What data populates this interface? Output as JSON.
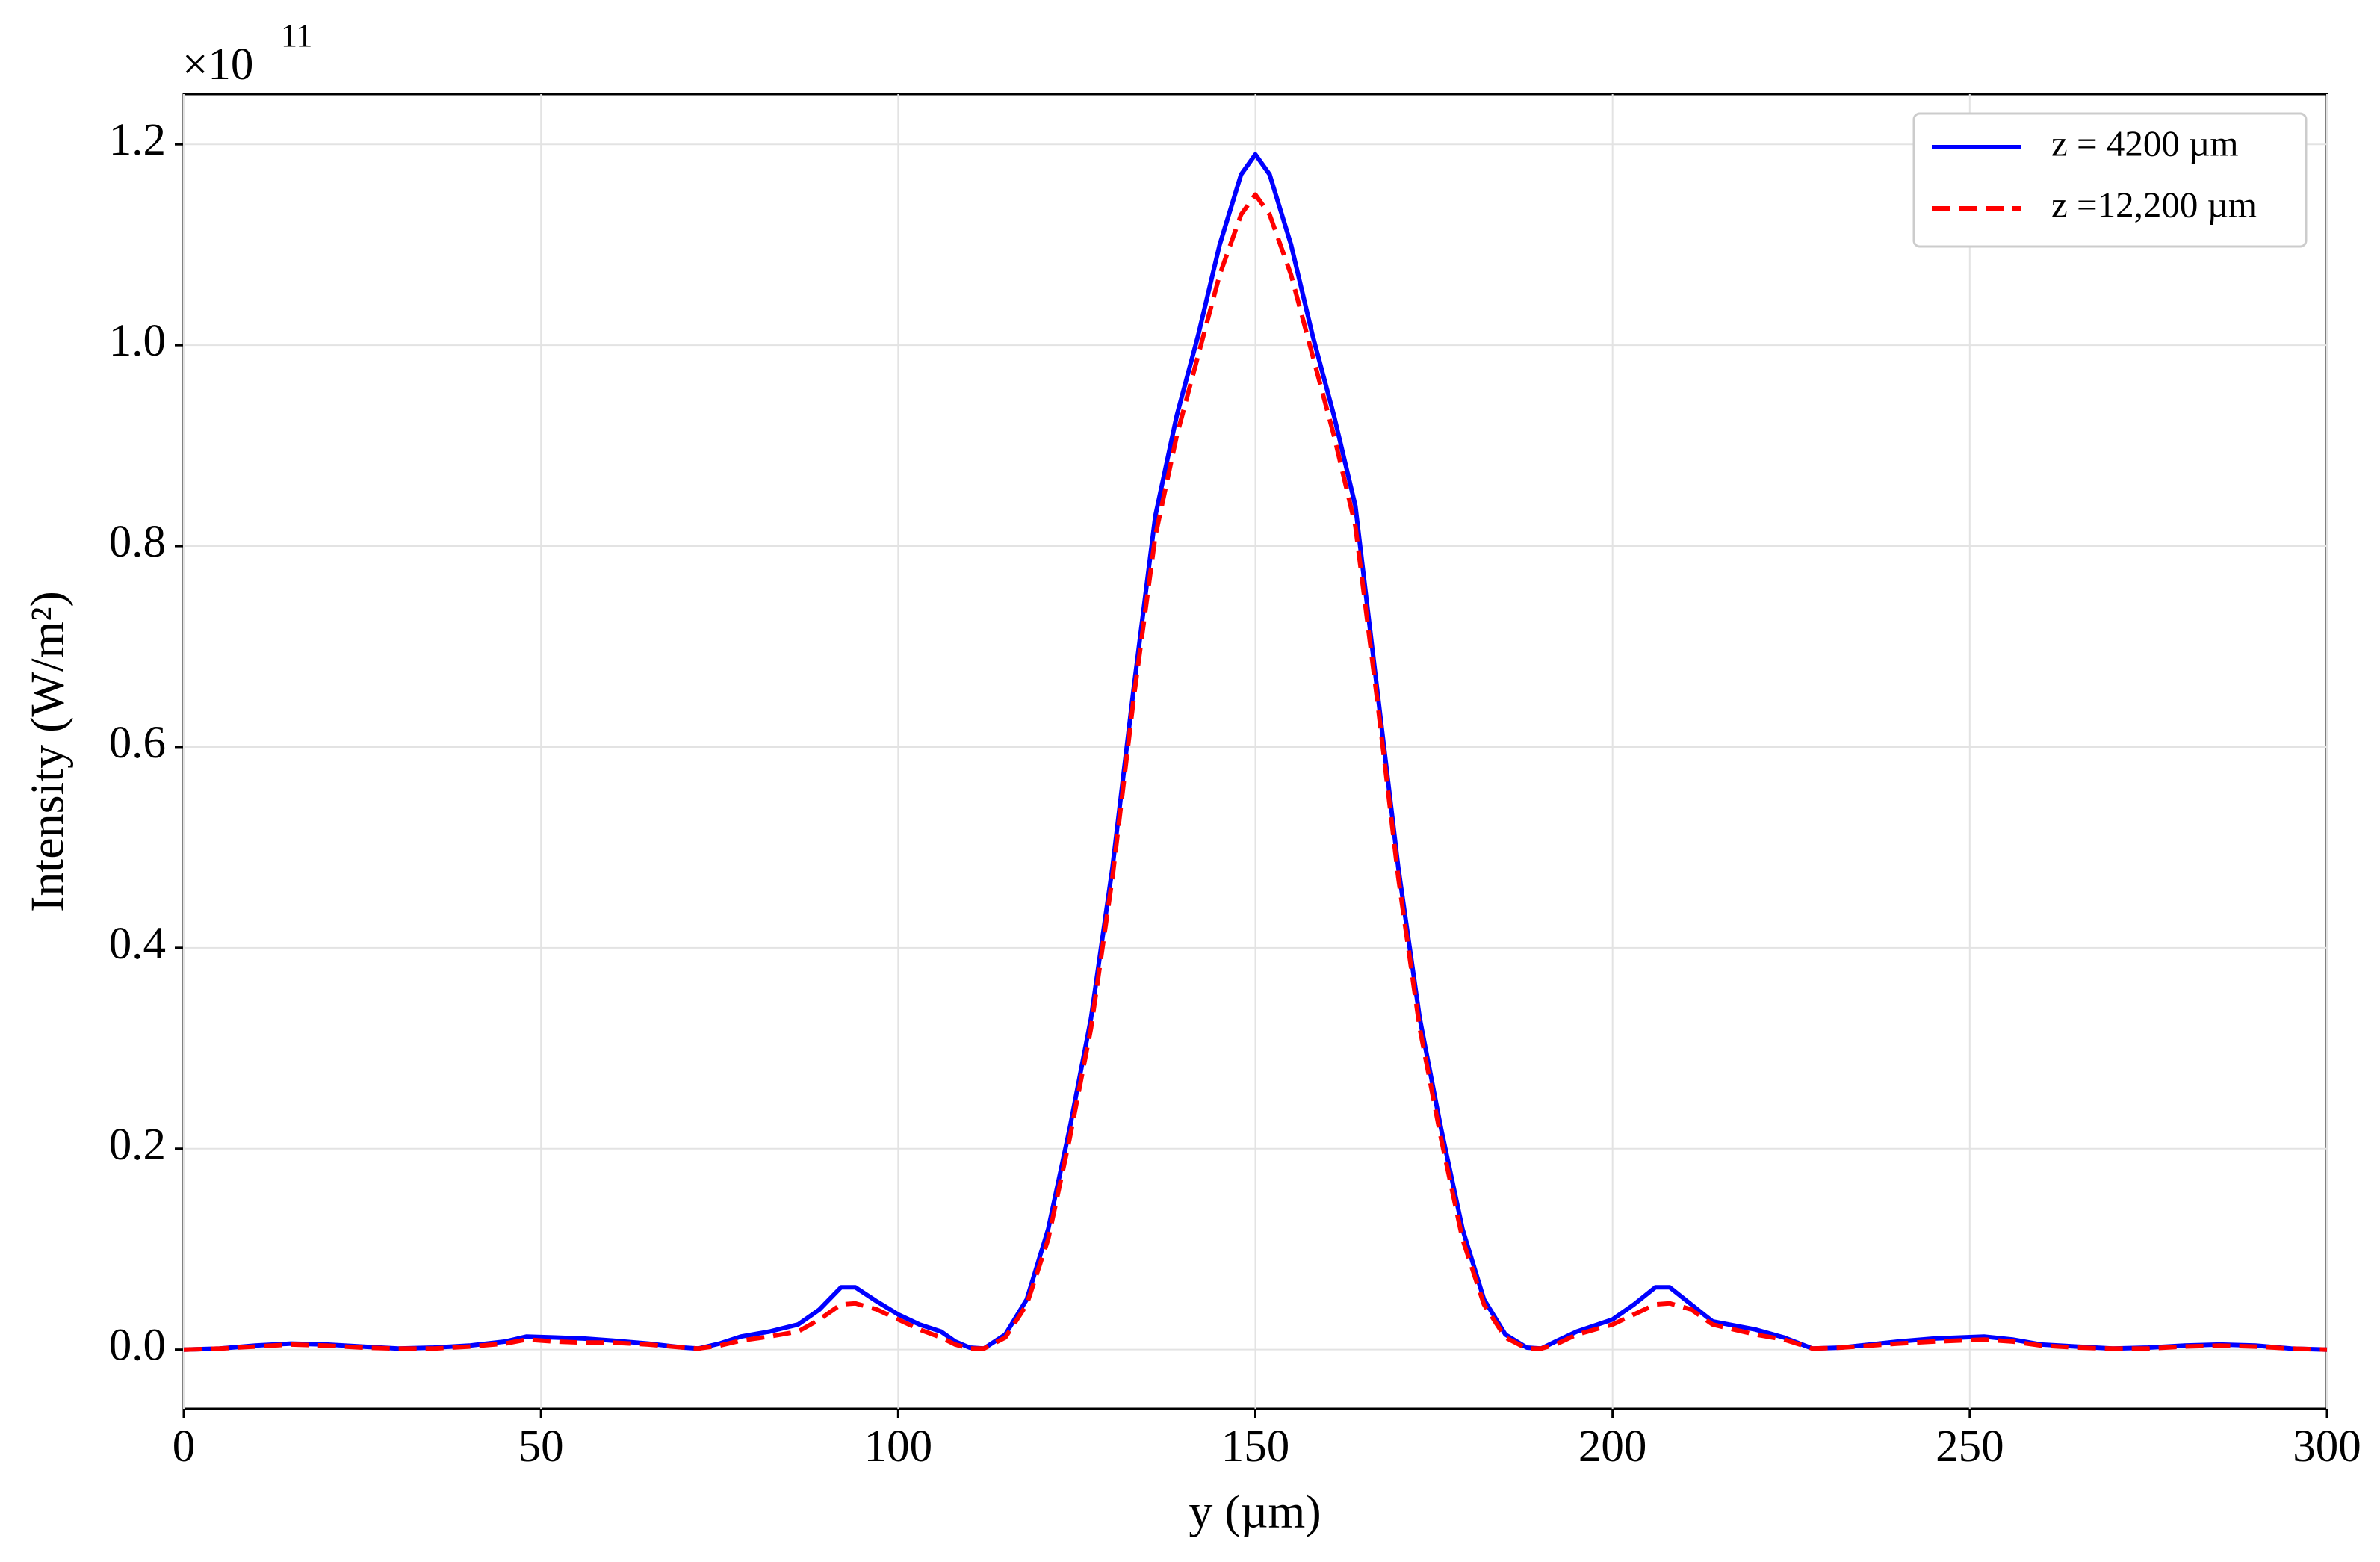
{
  "chart_data": {
    "type": "line",
    "y_multiplier": {
      "base": "×10",
      "exponent": "11"
    },
    "xlabel": "y (µm)",
    "ylabel": "Intensity (W/m²)",
    "x": [
      0,
      5,
      10,
      15,
      20,
      25,
      30,
      35,
      40,
      45,
      48,
      52,
      56,
      60,
      65,
      70,
      72,
      75,
      78,
      82,
      86,
      89,
      92,
      94,
      97,
      100,
      103,
      106,
      108,
      110,
      112,
      115,
      118,
      121,
      124,
      127,
      130,
      133,
      136,
      139,
      142,
      145,
      148,
      150,
      152,
      155,
      158,
      161,
      164,
      167,
      170,
      173,
      176,
      179,
      182,
      185,
      188,
      190,
      192,
      195,
      200,
      203,
      206,
      208,
      211,
      214,
      220,
      224,
      228,
      232,
      240,
      245,
      252,
      256,
      260,
      265,
      270,
      275,
      280,
      285,
      290,
      295,
      300
    ],
    "series": [
      {
        "name": "z = 4200 µm",
        "color": "#0000ff",
        "linestyle": "solid",
        "values": [
          0.0,
          0.001,
          0.004,
          0.006,
          0.005,
          0.003,
          0.001,
          0.002,
          0.004,
          0.008,
          0.013,
          0.012,
          0.011,
          0.009,
          0.006,
          0.002,
          0.001,
          0.006,
          0.013,
          0.018,
          0.025,
          0.04,
          0.062,
          0.062,
          0.048,
          0.035,
          0.025,
          0.018,
          0.008,
          0.002,
          0.001,
          0.015,
          0.05,
          0.12,
          0.22,
          0.33,
          0.48,
          0.66,
          0.83,
          0.93,
          1.01,
          1.1,
          1.17,
          1.19,
          1.17,
          1.1,
          1.01,
          0.93,
          0.84,
          0.66,
          0.48,
          0.33,
          0.22,
          0.12,
          0.05,
          0.015,
          0.002,
          0.001,
          0.008,
          0.018,
          0.03,
          0.045,
          0.062,
          0.062,
          0.045,
          0.028,
          0.02,
          0.012,
          0.001,
          0.002,
          0.008,
          0.011,
          0.013,
          0.01,
          0.005,
          0.003,
          0.001,
          0.002,
          0.004,
          0.005,
          0.004,
          0.001,
          0.0
        ]
      },
      {
        "name": "z =12,200 µm",
        "color": "#ff0000",
        "linestyle": "dashed",
        "values": [
          0.0,
          0.001,
          0.003,
          0.005,
          0.004,
          0.002,
          0.001,
          0.001,
          0.003,
          0.006,
          0.01,
          0.008,
          0.007,
          0.007,
          0.005,
          0.002,
          0.001,
          0.004,
          0.009,
          0.013,
          0.018,
          0.03,
          0.045,
          0.046,
          0.04,
          0.03,
          0.02,
          0.012,
          0.005,
          0.001,
          0.001,
          0.012,
          0.045,
          0.11,
          0.21,
          0.32,
          0.47,
          0.65,
          0.81,
          0.91,
          0.99,
          1.07,
          1.13,
          1.15,
          1.13,
          1.07,
          0.99,
          0.91,
          0.82,
          0.65,
          0.47,
          0.32,
          0.21,
          0.11,
          0.045,
          0.012,
          0.001,
          0.001,
          0.005,
          0.015,
          0.025,
          0.035,
          0.045,
          0.046,
          0.04,
          0.025,
          0.015,
          0.01,
          0.001,
          0.002,
          0.006,
          0.008,
          0.01,
          0.008,
          0.004,
          0.002,
          0.001,
          0.001,
          0.003,
          0.004,
          0.003,
          0.001,
          0.0
        ]
      }
    ],
    "xlim": [
      0,
      300
    ],
    "xticks": [
      0,
      50,
      100,
      150,
      200,
      250,
      300
    ],
    "ylim": [
      -0.059,
      1.25
    ],
    "yticks": [
      {
        "value": 0,
        "label": "0.0"
      },
      0.2,
      0.4,
      0.6,
      0.8,
      {
        "value": 1,
        "label": "1.0"
      },
      1.2
    ],
    "grid": true,
    "legend": "upper right"
  }
}
